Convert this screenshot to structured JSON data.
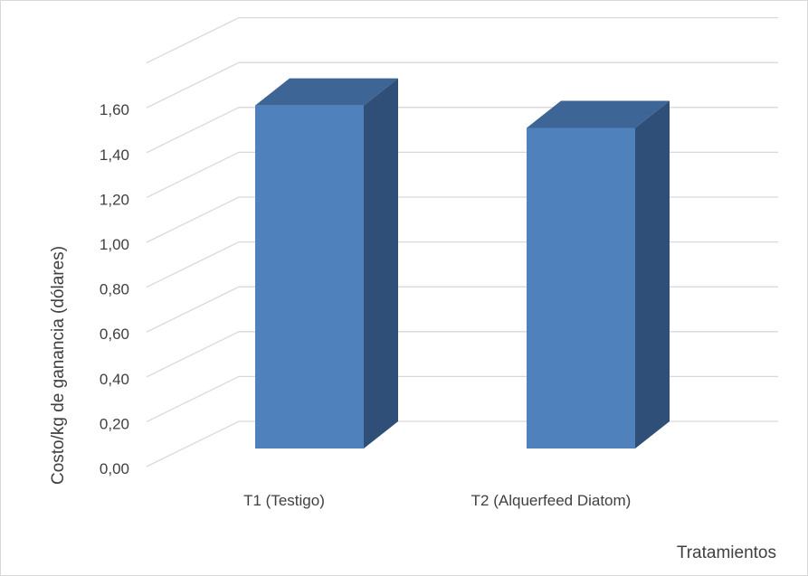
{
  "chart_data": {
    "type": "bar",
    "title": "",
    "categories": [
      "T1 (Testigo)",
      "T2 (Alquerfeed Diatom)"
    ],
    "values": [
      1.57,
      1.47
    ],
    "ylabel": "Costo/kg de ganancia  (dólares)",
    "xlabel": "Tratamientos",
    "ylim": [
      0,
      1.6
    ],
    "yticks": [
      "0,00",
      "0,20",
      "0,40",
      "0,60",
      "0,80",
      "1,00",
      "1,20",
      "1,40",
      "1,60"
    ],
    "grid": true,
    "three_d": true,
    "colors": {
      "bar_front": "#4f81bd",
      "bar_top": "#3d6595",
      "bar_side": "#2f4f78",
      "grid": "#d9d9d9",
      "text": "#404040"
    }
  }
}
